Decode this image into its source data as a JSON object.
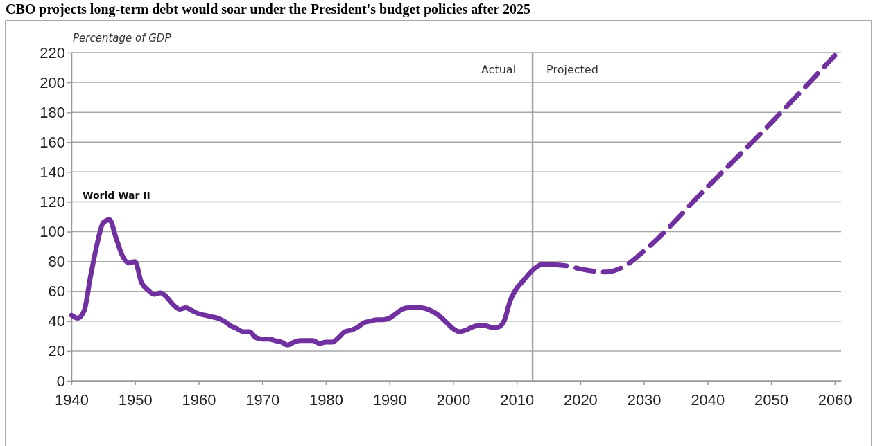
{
  "chart_data": {
    "type": "line",
    "title": "CBO projects long-term debt would soar under the President's budget policies after 2025",
    "ylabel": "Percentage of GDP",
    "annotations": [
      "World War II",
      "Actual",
      "Projected"
    ],
    "series": [
      {
        "color": "#7030a0",
        "line_style": "solid",
        "x": [
          1940,
          1941,
          1942,
          1943,
          1944,
          1945,
          1946,
          1947,
          1948,
          1949,
          1950,
          1951,
          1952,
          1953,
          1954,
          1955,
          1956,
          1957,
          1958,
          1959,
          1960,
          1961,
          1962,
          1963,
          1964,
          1965,
          1966,
          1967,
          1968,
          1969,
          1970,
          1971,
          1972,
          1973,
          1974,
          1975,
          1976,
          1977,
          1978,
          1979,
          1980,
          1981,
          1982,
          1983,
          1984,
          1985,
          1986,
          1987,
          1988,
          1989,
          1990,
          1991,
          1992,
          1993,
          1994,
          1995,
          1996,
          1997,
          1998,
          1999,
          2000,
          2001,
          2002,
          2003,
          2004,
          2005,
          2006,
          2007,
          2008,
          2009,
          2010,
          2011,
          2012,
          2013,
          2014,
          2015
        ],
        "values": [
          44,
          42,
          47,
          70,
          91,
          106,
          108,
          96,
          84,
          79,
          80,
          66,
          61,
          58,
          59,
          56,
          51,
          48,
          49,
          47,
          45,
          44,
          43,
          42,
          40,
          37,
          35,
          33,
          33,
          29,
          28,
          28,
          27,
          26,
          24,
          26,
          27,
          27,
          27,
          25,
          26,
          26,
          29,
          33,
          34,
          36,
          39,
          40,
          41,
          41,
          42,
          45,
          48,
          49,
          49,
          49,
          48,
          46,
          43,
          39,
          35,
          33,
          34,
          36,
          37,
          37,
          36,
          36,
          40,
          54,
          62,
          67,
          72,
          76,
          78,
          78
        ]
      },
      {
        "color": "#7030a0",
        "line_style": "dashed",
        "x": [
          2015,
          2018,
          2020,
          2024,
          2027,
          2030,
          2040,
          2050,
          2060
        ],
        "values": [
          78,
          77,
          75,
          73,
          77,
          87,
          130,
          173,
          218
        ]
      }
    ],
    "xlim": [
      1940,
      2061
    ],
    "xticks": [
      1940,
      1950,
      1960,
      1970,
      1980,
      1990,
      2000,
      2010,
      2020,
      2030,
      2040,
      2050,
      2060
    ],
    "ylim": [
      0,
      220
    ],
    "yticks": [
      0,
      20,
      40,
      60,
      80,
      100,
      120,
      140,
      160,
      180,
      200,
      220
    ],
    "grid": "y",
    "ref_lines": [
      {
        "axis": "x",
        "value": 2012.5,
        "color": "#a6a6a6",
        "line_style": "solid"
      }
    ]
  }
}
